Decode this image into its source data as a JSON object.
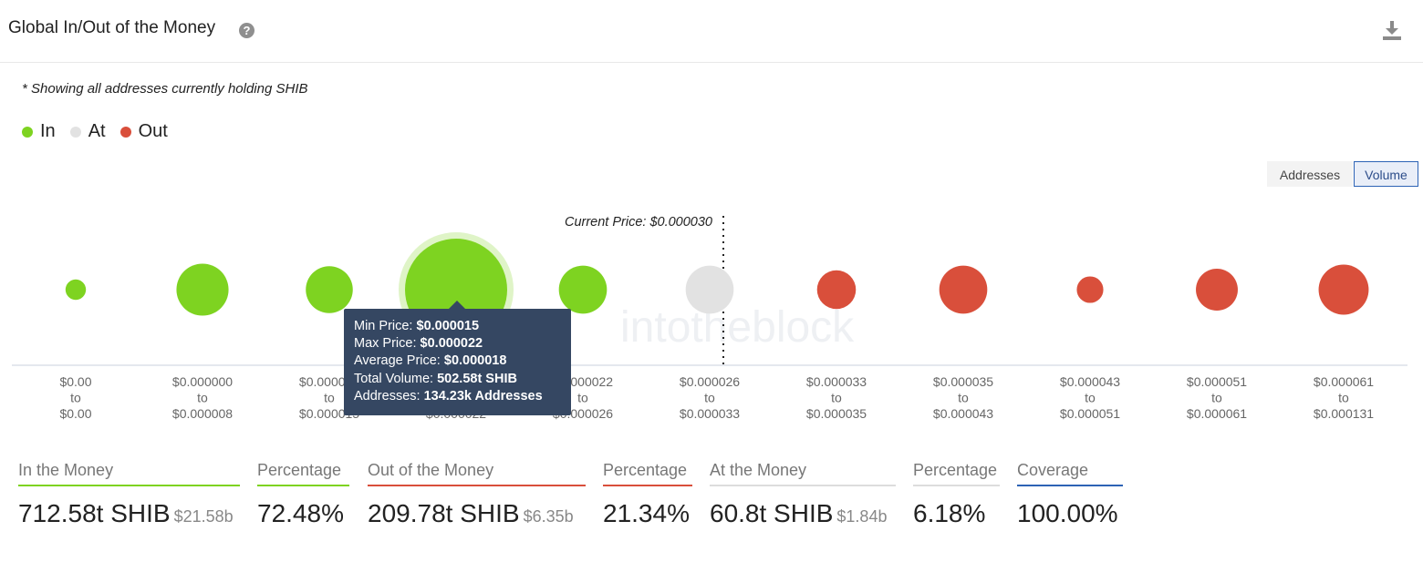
{
  "header": {
    "title": "Global In/Out of the Money",
    "help_icon": "question-circle-icon",
    "download_icon": "download-icon"
  },
  "note": "* Showing all addresses currently holding SHIB",
  "legend": [
    {
      "label": "In",
      "color": "#7ed321"
    },
    {
      "label": "At",
      "color": "#e2e2e2"
    },
    {
      "label": "Out",
      "color": "#d94f3b"
    }
  ],
  "toggles": {
    "addresses": "Addresses",
    "volume": "Volume",
    "selected": "Volume"
  },
  "colors": {
    "in": "#7ed321",
    "at": "#e2e2e2",
    "out": "#d94f3b",
    "tooltip_bg": "#354762",
    "accent": "#2d63b5"
  },
  "watermark": "intotheblock",
  "chart_data": {
    "type": "scatter",
    "encoding": "bubble size = total volume",
    "current_price_label": "Current Price: $0.000030",
    "current_price_position": "between bucket 6 and bucket 7",
    "categories": [
      {
        "from": "$0.00",
        "to": "$0.00",
        "status": "in",
        "volume_rel": 0.2
      },
      {
        "from": "$0.000000",
        "to": "$0.000008",
        "status": "in",
        "volume_rel": 0.51
      },
      {
        "from": "$0.000008",
        "to": "$0.000015",
        "status": "in",
        "volume_rel": 0.46
      },
      {
        "from": "$0.000015",
        "to": "$0.000022",
        "status": "in",
        "volume_rel": 1.0
      },
      {
        "from": "$0.000022",
        "to": "$0.000026",
        "status": "in",
        "volume_rel": 0.47
      },
      {
        "from": "$0.000026",
        "to": "$0.000033",
        "status": "at",
        "volume_rel": 0.47
      },
      {
        "from": "$0.000033",
        "to": "$0.000035",
        "status": "out",
        "volume_rel": 0.38
      },
      {
        "from": "$0.000035",
        "to": "$0.000043",
        "status": "out",
        "volume_rel": 0.47
      },
      {
        "from": "$0.000043",
        "to": "$0.000051",
        "status": "out",
        "volume_rel": 0.26
      },
      {
        "from": "$0.000051",
        "to": "$0.000061",
        "status": "out",
        "volume_rel": 0.41
      },
      {
        "from": "$0.000061",
        "to": "$0.000131",
        "status": "out",
        "volume_rel": 0.49
      }
    ],
    "tick_connector": "to",
    "highlighted_index": 3,
    "tooltip": {
      "min_price_label": "Min Price:",
      "min_price": "$0.000015",
      "max_price_label": "Max Price:",
      "max_price": "$0.000022",
      "avg_price_label": "Average Price:",
      "avg_price": "$0.000018",
      "total_volume_label": "Total Volume:",
      "total_volume": "502.58t SHIB",
      "addresses_label": "Addresses:",
      "addresses": "134.23k Addresses"
    }
  },
  "stats": [
    {
      "label": "In the Money",
      "value": "712.58t SHIB",
      "sub": "$21.58b",
      "color": "#7ed321"
    },
    {
      "label": "Percentage",
      "value": "72.48%",
      "sub": "",
      "color": "#7ed321"
    },
    {
      "label": "Out of the Money",
      "value": "209.78t SHIB",
      "sub": "$6.35b",
      "color": "#d94f3b"
    },
    {
      "label": "Percentage",
      "value": "21.34%",
      "sub": "",
      "color": "#d94f3b"
    },
    {
      "label": "At the Money",
      "value": "60.8t SHIB",
      "sub": "$1.84b",
      "color": "#dddddd"
    },
    {
      "label": "Percentage",
      "value": "6.18%",
      "sub": "",
      "color": "#dddddd"
    },
    {
      "label": "Coverage",
      "value": "100.00%",
      "sub": "",
      "color": "#2d63b5"
    }
  ]
}
